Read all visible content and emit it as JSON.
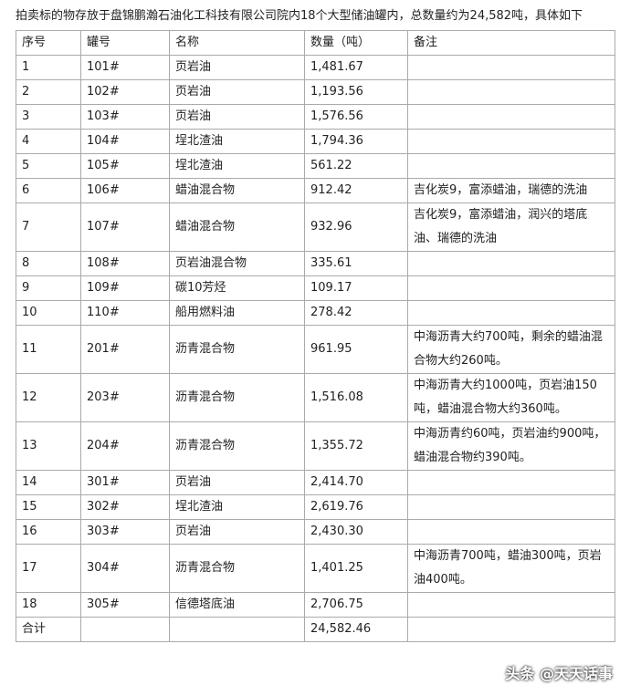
{
  "intro": "拍卖标的物存放于盘锦鹏瀚石油化工科技有限公司院内18个大型储油罐内，总数量约为24,582吨，具体如下",
  "table": {
    "header": [
      "序号",
      "罐号",
      "名称",
      "数量（吨）",
      "备注"
    ],
    "rows": [
      [
        "1",
        "101#",
        "页岩油",
        "1,481.67",
        ""
      ],
      [
        "2",
        "102#",
        "页岩油",
        "1,193.56",
        ""
      ],
      [
        "3",
        "103#",
        "页岩油",
        "1,576.56",
        ""
      ],
      [
        "4",
        "104#",
        "埕北渣油",
        "1,794.36",
        ""
      ],
      [
        "5",
        "105#",
        "埕北渣油",
        "561.22",
        ""
      ],
      [
        "6",
        "106#",
        "蜡油混合物",
        "912.42",
        "吉化炭9，富添蜡油，瑞德的洗油"
      ],
      [
        "7",
        "107#",
        "蜡油混合物",
        "932.96",
        "吉化炭9，富添蜡油，润兴的塔底油、瑞德的洗油"
      ],
      [
        "8",
        "108#",
        "页岩油混合物",
        "335.61",
        ""
      ],
      [
        "9",
        "109#",
        "碳10芳烃",
        "109.17",
        ""
      ],
      [
        "10",
        "110#",
        "船用燃料油",
        "278.42",
        ""
      ],
      [
        "11",
        "201#",
        "沥青混合物",
        "961.95",
        "中海沥青大约700吨，剩余的蜡油混合物大约260吨。"
      ],
      [
        "12",
        "203#",
        "沥青混合物",
        "1,516.08",
        "中海沥青大约1000吨，页岩油150吨，蜡油混合物大约360吨。"
      ],
      [
        "13",
        "204#",
        "沥青混合物",
        "1,355.72",
        "中海沥青约60吨，页岩油约900吨，蜡油混合物约390吨。"
      ],
      [
        "14",
        "301#",
        "页岩油",
        "2,414.70",
        ""
      ],
      [
        "15",
        "302#",
        "埕北渣油",
        "2,619.76",
        ""
      ],
      [
        "16",
        "303#",
        "页岩油",
        "2,430.30",
        ""
      ],
      [
        "17",
        "304#",
        "沥青混合物",
        "1,401.25",
        "中海沥青700吨，蜡油300吨，页岩油400吨。"
      ],
      [
        "18",
        "305#",
        "信德塔底油",
        "2,706.75",
        ""
      ],
      [
        "合计",
        "",
        "",
        "24,582.46",
        ""
      ]
    ]
  },
  "watermark": "头条 @天天话事"
}
